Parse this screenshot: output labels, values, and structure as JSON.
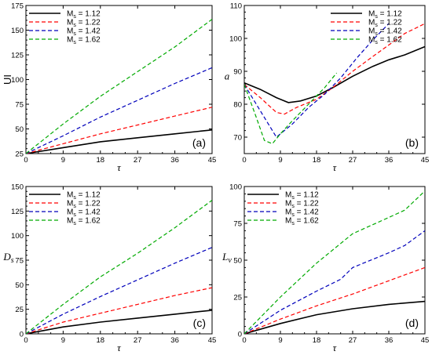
{
  "chart_data": [
    {
      "type": "line",
      "panel_label": "(a)",
      "ylabel": "UI",
      "ylabel_style": "sans",
      "xlabel": "τ",
      "xlim": [
        0,
        45
      ],
      "ylim": [
        25,
        175
      ],
      "xticks": [
        0,
        9,
        18,
        27,
        36,
        45
      ],
      "yticks": [
        25,
        50,
        75,
        100,
        125,
        150,
        175
      ],
      "legend_position": "top-left",
      "grid": false,
      "series": [
        {
          "name": "1.12",
          "color": "#000000",
          "dash": "solid",
          "x": [
            0,
            9,
            18,
            27,
            36,
            45
          ],
          "y": [
            25,
            31,
            37,
            41,
            45,
            49
          ]
        },
        {
          "name": "1.22",
          "color": "#ff0000",
          "dash": "dashed",
          "x": [
            0,
            9,
            18,
            27,
            36,
            45
          ],
          "y": [
            25,
            35,
            45,
            54,
            63,
            72
          ]
        },
        {
          "name": "1.42",
          "color": "#0000bb",
          "dash": "dashed",
          "x": [
            0,
            9,
            18,
            27,
            36,
            45
          ],
          "y": [
            25,
            43,
            62,
            79,
            96,
            112
          ]
        },
        {
          "name": "1.62",
          "color": "#00aa00",
          "dash": "dashed",
          "x": [
            0,
            9,
            18,
            27,
            36,
            45
          ],
          "y": [
            25,
            55,
            83,
            108,
            133,
            161
          ]
        }
      ]
    },
    {
      "type": "line",
      "panel_label": "(b)",
      "ylabel": "a",
      "ylabel_style": "serif-italic",
      "xlabel": "τ",
      "xlim": [
        0,
        45
      ],
      "ylim": [
        65,
        110
      ],
      "xticks": [
        0,
        9,
        18,
        27,
        36,
        45
      ],
      "yticks": [
        70,
        80,
        90,
        100,
        110
      ],
      "legend_position": "top-right",
      "grid": false,
      "series": [
        {
          "name": "1.12",
          "color": "#000000",
          "dash": "solid",
          "x": [
            0,
            4,
            8,
            11,
            14,
            18,
            22,
            27,
            32,
            36,
            40,
            45
          ],
          "y": [
            86.5,
            84.5,
            82,
            80.5,
            81,
            82.5,
            85,
            88.5,
            91.5,
            93.5,
            95,
            97.5
          ]
        },
        {
          "name": "1.22",
          "color": "#ff0000",
          "dash": "dashed",
          "x": [
            0,
            4,
            8,
            10,
            13,
            18,
            22,
            27,
            32,
            36,
            40,
            45
          ],
          "y": [
            86,
            82,
            77.5,
            77,
            79,
            81.5,
            85,
            90,
            94.5,
            98,
            101.5,
            104.5
          ]
        },
        {
          "name": "1.42",
          "color": "#0000bb",
          "dash": "dashed",
          "x": [
            0,
            4,
            8,
            12,
            16,
            20,
            24,
            28,
            32,
            36
          ],
          "y": [
            86,
            78,
            70,
            74,
            79,
            83,
            88,
            94,
            99.5,
            104.5
          ]
        },
        {
          "name": "1.62",
          "color": "#00aa00",
          "dash": "dashed",
          "x": [
            0,
            3,
            5,
            7,
            9,
            12,
            16,
            20,
            23
          ],
          "y": [
            86,
            76,
            69,
            68,
            71,
            75,
            80,
            85,
            89.5
          ]
        }
      ]
    },
    {
      "type": "line",
      "panel_label": "(c)",
      "ylabel": "D",
      "ylabel_sub": "s",
      "ylabel_style": "serif-italic",
      "xlabel": "τ",
      "xlim": [
        0,
        45
      ],
      "ylim": [
        0,
        150
      ],
      "xticks": [
        0,
        9,
        18,
        27,
        36,
        45
      ],
      "yticks": [
        0,
        25,
        50,
        75,
        100,
        125,
        150
      ],
      "legend_position": "top-left",
      "grid": false,
      "series": [
        {
          "name": "1.12",
          "color": "#000000",
          "dash": "solid",
          "x": [
            0,
            9,
            18,
            27,
            36,
            45
          ],
          "y": [
            0,
            7,
            12,
            16,
            20,
            24
          ]
        },
        {
          "name": "1.22",
          "color": "#ff0000",
          "dash": "dashed",
          "x": [
            0,
            9,
            18,
            27,
            36,
            45
          ],
          "y": [
            0,
            12,
            21,
            30,
            39,
            47
          ]
        },
        {
          "name": "1.42",
          "color": "#0000bb",
          "dash": "dashed",
          "x": [
            0,
            9,
            18,
            27,
            36,
            45
          ],
          "y": [
            0,
            20,
            38,
            55,
            72,
            88
          ]
        },
        {
          "name": "1.62",
          "color": "#00aa00",
          "dash": "dashed",
          "x": [
            0,
            9,
            18,
            27,
            36,
            45
          ],
          "y": [
            0,
            30,
            58,
            82,
            108,
            136
          ]
        }
      ]
    },
    {
      "type": "line",
      "panel_label": "(d)",
      "ylabel": "L",
      "ylabel_sub": "v",
      "ylabel_style": "serif-italic",
      "xlabel": "τ",
      "xlim": [
        0,
        45
      ],
      "ylim": [
        0,
        100
      ],
      "xticks": [
        0,
        9,
        18,
        27,
        36,
        45
      ],
      "yticks": [
        0,
        25,
        50,
        75,
        100
      ],
      "legend_position": "top-left",
      "grid": false,
      "series": [
        {
          "name": "1.12",
          "color": "#000000",
          "dash": "solid",
          "x": [
            0,
            9,
            18,
            27,
            36,
            45
          ],
          "y": [
            0,
            7,
            13,
            17,
            20,
            22
          ]
        },
        {
          "name": "1.22",
          "color": "#ff0000",
          "dash": "dashed",
          "x": [
            0,
            9,
            18,
            27,
            36,
            45
          ],
          "y": [
            0,
            10,
            19,
            27,
            36,
            45
          ]
        },
        {
          "name": "1.42",
          "color": "#0000bb",
          "dash": "dashed",
          "x": [
            0,
            9,
            18,
            24,
            27,
            36,
            40,
            45
          ],
          "y": [
            0,
            16,
            29,
            37,
            45,
            55,
            60,
            70
          ]
        },
        {
          "name": "1.62",
          "color": "#00aa00",
          "dash": "dashed",
          "x": [
            0,
            9,
            18,
            27,
            36,
            40,
            45
          ],
          "y": [
            0,
            25,
            48,
            68,
            79,
            84,
            97
          ]
        }
      ]
    }
  ],
  "legend": {
    "prefix_main": "M",
    "prefix_sub": "s",
    "separator": " = "
  }
}
